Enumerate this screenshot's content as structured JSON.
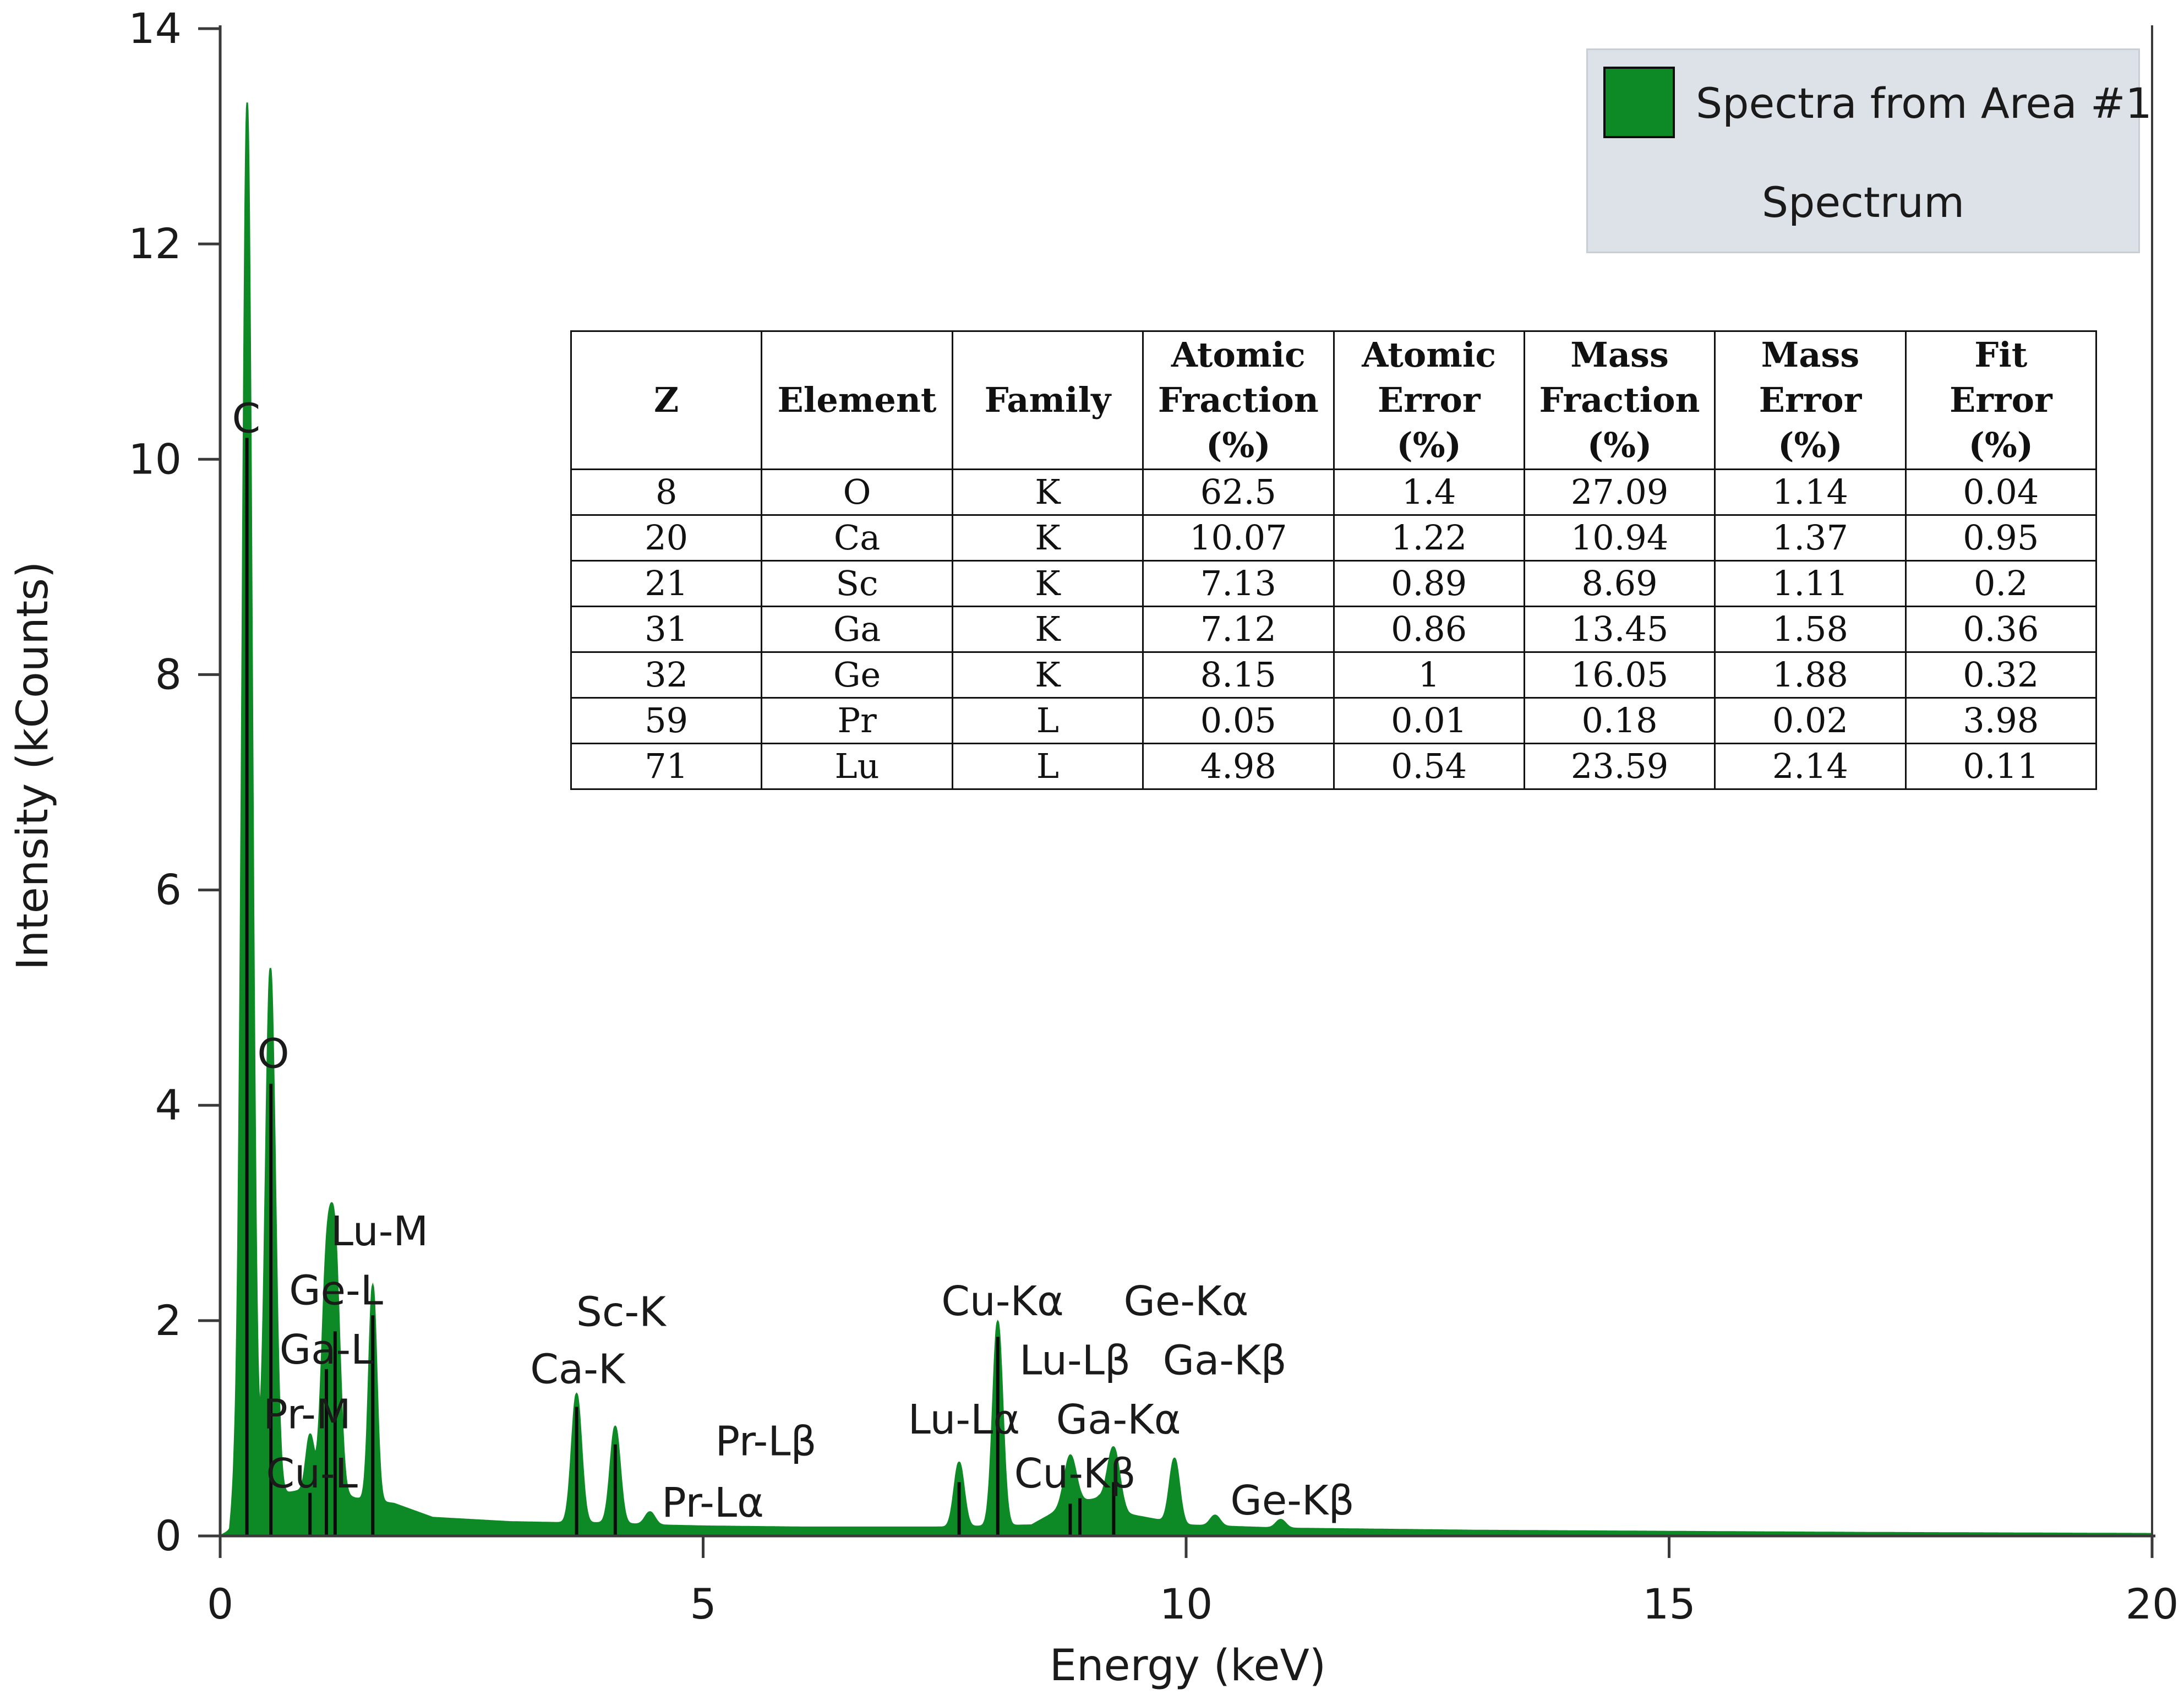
{
  "chart_data": {
    "type": "line",
    "title": "",
    "xlabel": "Energy (keV)",
    "ylabel": "Intensity (kCounts)",
    "xlim": [
      0,
      20
    ],
    "ylim": [
      0,
      14
    ],
    "x_ticks": [
      0,
      5,
      10,
      15,
      20
    ],
    "x_tick_labels": [
      "0",
      "5",
      "10",
      "15",
      "20"
    ],
    "y_ticks": [
      0,
      2,
      4,
      6,
      8,
      10,
      12,
      14
    ],
    "y_tick_labels": [
      "0",
      "2",
      "4",
      "6",
      "8",
      "10",
      "12",
      "14"
    ],
    "grid": false,
    "series_color": "#0d8a25",
    "marker_color": "#0b0b0b",
    "baseline": [
      [
        0.0,
        0.0
      ],
      [
        0.1,
        0.05
      ],
      [
        0.15,
        0.45
      ],
      [
        0.2,
        0.7
      ],
      [
        0.35,
        0.35
      ],
      [
        0.7,
        0.4
      ],
      [
        1.0,
        0.45
      ],
      [
        1.4,
        0.35
      ],
      [
        1.8,
        0.3
      ],
      [
        2.2,
        0.17
      ],
      [
        3.0,
        0.13
      ],
      [
        3.6,
        0.12
      ],
      [
        4.0,
        0.12
      ],
      [
        4.5,
        0.1
      ],
      [
        5.0,
        0.09
      ],
      [
        6.0,
        0.08
      ],
      [
        7.0,
        0.08
      ],
      [
        7.5,
        0.08
      ],
      [
        8.4,
        0.1
      ],
      [
        8.8,
        0.3
      ],
      [
        9.1,
        0.35
      ],
      [
        9.4,
        0.2
      ],
      [
        10.0,
        0.1
      ],
      [
        11.0,
        0.07
      ],
      [
        13.0,
        0.05
      ],
      [
        15.0,
        0.04
      ],
      [
        17.0,
        0.03
      ],
      [
        20.0,
        0.02
      ]
    ],
    "peaks": [
      {
        "energy": 0.28,
        "height": 12.8,
        "width": 0.05
      },
      {
        "energy": 0.52,
        "height": 4.9,
        "width": 0.05
      },
      {
        "energy": 0.93,
        "height": 0.5,
        "width": 0.04
      },
      {
        "energy": 1.1,
        "height": 1.9,
        "width": 0.05
      },
      {
        "energy": 1.19,
        "height": 2.1,
        "width": 0.05
      },
      {
        "energy": 1.58,
        "height": 2.0,
        "width": 0.04
      },
      {
        "energy": 3.69,
        "height": 1.2,
        "width": 0.05
      },
      {
        "energy": 4.09,
        "height": 0.9,
        "width": 0.05
      },
      {
        "energy": 4.45,
        "height": 0.12,
        "width": 0.05
      },
      {
        "energy": 7.65,
        "height": 0.6,
        "width": 0.05
      },
      {
        "energy": 8.05,
        "height": 1.9,
        "width": 0.05
      },
      {
        "energy": 8.8,
        "height": 0.45,
        "width": 0.06
      },
      {
        "energy": 9.25,
        "height": 0.55,
        "width": 0.06
      },
      {
        "energy": 9.88,
        "height": 0.6,
        "width": 0.05
      },
      {
        "energy": 10.3,
        "height": 0.1,
        "width": 0.05
      },
      {
        "energy": 10.98,
        "height": 0.08,
        "width": 0.05
      }
    ],
    "marker_lines": [
      {
        "energy": 0.277,
        "height": 10.2
      },
      {
        "energy": 0.525,
        "height": 4.2
      },
      {
        "energy": 0.93,
        "height": 0.4
      },
      {
        "energy": 1.1,
        "height": 1.55
      },
      {
        "energy": 1.19,
        "height": 1.9
      },
      {
        "energy": 1.58,
        "height": 2.05
      },
      {
        "energy": 3.69,
        "height": 1.2
      },
      {
        "energy": 4.09,
        "height": 0.85
      },
      {
        "energy": 7.65,
        "height": 0.5
      },
      {
        "energy": 8.05,
        "height": 1.85
      },
      {
        "energy": 8.8,
        "height": 0.3
      },
      {
        "energy": 8.9,
        "height": 0.35
      },
      {
        "energy": 9.25,
        "height": 0.5
      }
    ],
    "peak_labels": [
      {
        "text": "C",
        "energy": 0.27,
        "y": 10.25
      },
      {
        "text": "O",
        "energy": 0.55,
        "y": 4.35
      },
      {
        "text": "Lu-M",
        "energy": 1.65,
        "y": 2.7
      },
      {
        "text": "Ge-L",
        "energy": 1.2,
        "y": 2.15
      },
      {
        "text": "Ga-L",
        "energy": 1.1,
        "y": 1.6
      },
      {
        "text": "Pr-M",
        "energy": 0.9,
        "y": 1.0
      },
      {
        "text": "Cu-L",
        "energy": 0.95,
        "y": 0.45
      },
      {
        "text": "Sc-K",
        "energy": 4.15,
        "y": 1.95
      },
      {
        "text": "Ca-K",
        "energy": 3.7,
        "y": 1.42
      },
      {
        "text": "Pr-Lβ",
        "energy": 5.65,
        "y": 0.75
      },
      {
        "text": "Pr-Lα",
        "energy": 5.1,
        "y": 0.18
      },
      {
        "text": "Cu-Kα",
        "energy": 8.1,
        "y": 2.05
      },
      {
        "text": "Lu-Lβ",
        "energy": 8.85,
        "y": 1.5
      },
      {
        "text": "Lu-Lα",
        "energy": 7.7,
        "y": 0.95
      },
      {
        "text": "Ge-Kα",
        "energy": 10.0,
        "y": 2.05
      },
      {
        "text": "Ga-Kβ",
        "energy": 10.4,
        "y": 1.5
      },
      {
        "text": "Ga-Kα",
        "energy": 9.3,
        "y": 0.95
      },
      {
        "text": "Cu-Kβ",
        "energy": 8.85,
        "y": 0.45
      },
      {
        "text": "Ge-Kβ",
        "energy": 11.1,
        "y": 0.2
      }
    ]
  },
  "legend": {
    "series_label": "Spectra from Area #1",
    "type_label": "Spectrum",
    "swatch_color": "#0d8a25"
  },
  "table": {
    "headers": [
      [
        "Z"
      ],
      [
        "Element"
      ],
      [
        "Family"
      ],
      [
        "Atomic",
        "Fraction",
        "(%)"
      ],
      [
        "Atomic",
        "Error",
        "(%)"
      ],
      [
        "Mass",
        "Fraction",
        "(%)"
      ],
      [
        "Mass",
        "Error",
        "(%)"
      ],
      [
        "Fit",
        "Error",
        "(%)"
      ]
    ],
    "rows": [
      [
        "8",
        "O",
        "K",
        "62.5",
        "1.4",
        "27.09",
        "1.14",
        "0.04"
      ],
      [
        "20",
        "Ca",
        "K",
        "10.07",
        "1.22",
        "10.94",
        "1.37",
        "0.95"
      ],
      [
        "21",
        "Sc",
        "K",
        "7.13",
        "0.89",
        "8.69",
        "1.11",
        "0.2"
      ],
      [
        "31",
        "Ga",
        "K",
        "7.12",
        "0.86",
        "13.45",
        "1.58",
        "0.36"
      ],
      [
        "32",
        "Ge",
        "K",
        "8.15",
        "1",
        "16.05",
        "1.88",
        "0.32"
      ],
      [
        "59",
        "Pr",
        "L",
        "0.05",
        "0.01",
        "0.18",
        "0.02",
        "3.98"
      ],
      [
        "71",
        "Lu",
        "L",
        "4.98",
        "0.54",
        "23.59",
        "2.14",
        "0.11"
      ]
    ]
  }
}
